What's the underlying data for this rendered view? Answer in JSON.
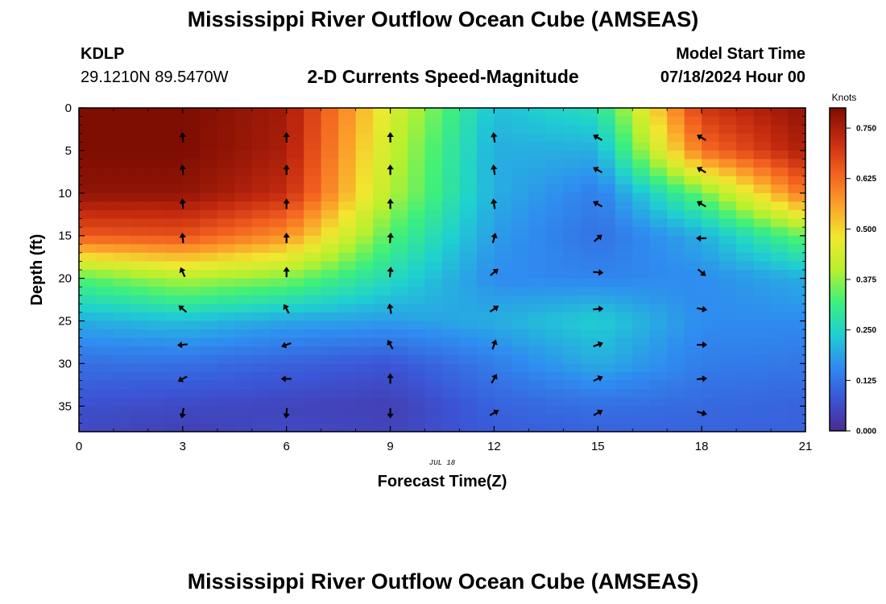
{
  "header": {
    "title": "Mississippi River Outflow Ocean Cube (AMSEAS)",
    "station_id": "KDLP",
    "station_coords": "29.1210N  89.5470W",
    "subtitle": "2-D Currents Speed-Magnitude",
    "start_label": "Model Start Time",
    "start_value": "07/18/2024 Hour 00"
  },
  "footer": {
    "title": "Mississippi River Outflow Ocean Cube (AMSEAS)"
  },
  "chart_data": {
    "type": "heatmap",
    "xlabel": "Forecast Time(Z)",
    "ylabel": "Depth (ft)",
    "date_label": "JUL 18",
    "xlim": [
      0,
      21
    ],
    "ylim": [
      0,
      38
    ],
    "y_inverted": true,
    "x_ticks": [
      0,
      3,
      6,
      9,
      12,
      15,
      18,
      21
    ],
    "y_ticks": [
      0,
      5,
      10,
      15,
      20,
      25,
      30,
      35
    ],
    "colorbar": {
      "label": "Knots",
      "range": [
        0,
        0.8
      ],
      "ticks": [
        "0.000",
        "0.125",
        "0.250",
        "0.375",
        "0.500",
        "0.625",
        "0.750"
      ],
      "colors": [
        "#4b2a8f",
        "#3b55d6",
        "#2f8cf0",
        "#1fd0d0",
        "#3ff07a",
        "#b8f02d",
        "#f0e830",
        "#fca02a",
        "#f25f1f",
        "#c42a0f",
        "#7e0d02"
      ]
    },
    "arrow_times": [
      3,
      6,
      9,
      12,
      15,
      18
    ],
    "arrow_depths": [
      3.5,
      7.3,
      11.3,
      15.3,
      19.3,
      23.6,
      27.8,
      31.8,
      35.8
    ],
    "arrow_angles_deg": [
      [
        -95,
        -90,
        -90,
        -98,
        -150,
        -150
      ],
      [
        -95,
        -90,
        -90,
        -98,
        -150,
        -150
      ],
      [
        -95,
        -90,
        -90,
        -98,
        -150,
        -150
      ],
      [
        -95,
        -90,
        -85,
        -75,
        -40,
        180
      ],
      [
        -115,
        -90,
        -85,
        -40,
        5,
        40
      ],
      [
        -140,
        -120,
        -100,
        -35,
        -5,
        10
      ],
      [
        175,
        160,
        -120,
        -70,
        -20,
        0
      ],
      [
        150,
        180,
        -90,
        -60,
        -25,
        -5
      ],
      [
        100,
        95,
        90,
        -30,
        -30,
        15
      ]
    ],
    "speed_anchor_times": [
      0,
      3,
      6,
      9,
      12,
      15,
      18,
      21
    ],
    "speed_anchor_depths": [
      0,
      5,
      10,
      15,
      20,
      25,
      30,
      35,
      38
    ],
    "speed_knots": [
      [
        0.8,
        0.8,
        0.76,
        0.45,
        0.22,
        0.27,
        0.7,
        0.78
      ],
      [
        0.8,
        0.8,
        0.75,
        0.42,
        0.2,
        0.2,
        0.62,
        0.75
      ],
      [
        0.78,
        0.78,
        0.72,
        0.4,
        0.2,
        0.14,
        0.35,
        0.62
      ],
      [
        0.65,
        0.66,
        0.58,
        0.33,
        0.18,
        0.12,
        0.2,
        0.35
      ],
      [
        0.33,
        0.4,
        0.36,
        0.26,
        0.16,
        0.15,
        0.16,
        0.2
      ],
      [
        0.2,
        0.22,
        0.19,
        0.18,
        0.2,
        0.24,
        0.16,
        0.16
      ],
      [
        0.12,
        0.12,
        0.1,
        0.08,
        0.14,
        0.2,
        0.14,
        0.13
      ],
      [
        0.07,
        0.06,
        0.05,
        0.04,
        0.1,
        0.12,
        0.11,
        0.1
      ],
      [
        0.06,
        0.04,
        0.06,
        0.05,
        0.09,
        0.1,
        0.1,
        0.1
      ]
    ]
  }
}
